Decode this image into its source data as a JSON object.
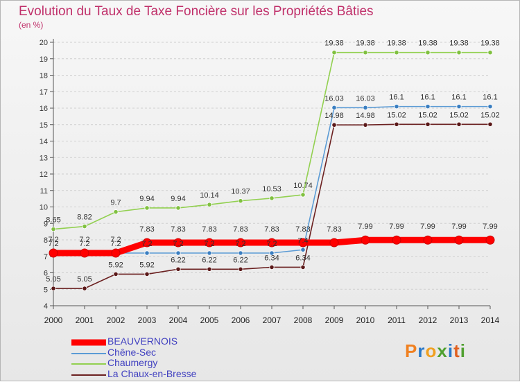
{
  "title": "Evolution du Taux de Taxe Foncière sur les Propriétés Bâties",
  "unit_label": "(en %)",
  "logo": {
    "parts": [
      "P",
      "r",
      "o",
      "x",
      "i",
      "t",
      "i"
    ],
    "colors": [
      "#f08020",
      "#2878c8",
      "#f0a020",
      "#50a030",
      "#2878c8",
      "#e06020",
      "#50a030"
    ]
  },
  "chart_data": {
    "type": "line",
    "x": [
      "2000",
      "2001",
      "2002",
      "2003",
      "2004",
      "2005",
      "2006",
      "2007",
      "2008",
      "2009",
      "2010",
      "2011",
      "2012",
      "2013",
      "2014"
    ],
    "ylim": [
      4,
      20
    ],
    "yticks": [
      "4",
      "5",
      "6",
      "7",
      "8",
      "9",
      "10",
      "11",
      "12",
      "13",
      "14",
      "15",
      "16",
      "17",
      "18",
      "19",
      "20"
    ],
    "grid": "horizontal",
    "series": [
      {
        "name": "BEAUVERNOIS",
        "color": "#ff0000",
        "values": [
          7.2,
          7.2,
          7.2,
          7.83,
          7.83,
          7.83,
          7.83,
          7.83,
          7.83,
          7.83,
          7.99,
          7.99,
          7.99,
          7.99,
          7.99
        ],
        "labels": [
          "7.2",
          "7.2",
          "7.2",
          "7.83",
          "7.83",
          "7.83",
          "7.83",
          "7.83",
          "7.83",
          "7.83",
          "7.99",
          "7.99",
          "7.99",
          "7.99",
          "7.99"
        ]
      },
      {
        "name": "Chêne-Sec",
        "color": "#5b9bd5",
        "values": [
          7.2,
          7.2,
          7.2,
          7.2,
          7.2,
          7.2,
          7.2,
          7.2,
          7.4,
          16.03,
          16.03,
          16.1,
          16.1,
          16.1,
          16.1
        ],
        "labels": [
          "7.2",
          "7.2",
          "7.2",
          "7.2",
          "7.2",
          "7.2",
          "7.2",
          "7.2",
          "7.4",
          "16.03",
          "16.03",
          "16.1",
          "16.1",
          "16.1",
          "16.1"
        ]
      },
      {
        "name": "Chaumergy",
        "color": "#92d050",
        "values": [
          8.65,
          8.82,
          9.7,
          9.94,
          9.94,
          10.14,
          10.37,
          10.53,
          10.74,
          19.38,
          19.38,
          19.38,
          19.38,
          19.38,
          19.38
        ],
        "labels": [
          "8.65",
          "8.82",
          "9.7",
          "9.94",
          "9.94",
          "10.14",
          "10.37",
          "10.53",
          "10.74",
          "19.38",
          "19.38",
          "19.38",
          "19.38",
          "19.38",
          "19.38"
        ]
      },
      {
        "name": "La Chaux-en-Bresse",
        "color": "#6b2020",
        "values": [
          5.05,
          5.05,
          5.92,
          5.92,
          6.22,
          6.22,
          6.22,
          6.34,
          6.34,
          14.98,
          14.98,
          15.02,
          15.02,
          15.02,
          15.02
        ],
        "labels": [
          "5.05",
          "5.05",
          "5.92",
          "5.92",
          "6.22",
          "6.22",
          "6.22",
          "6.34",
          "6.34",
          "14.98",
          "14.98",
          "15.02",
          "15.02",
          "15.02",
          "15.02"
        ]
      }
    ]
  }
}
